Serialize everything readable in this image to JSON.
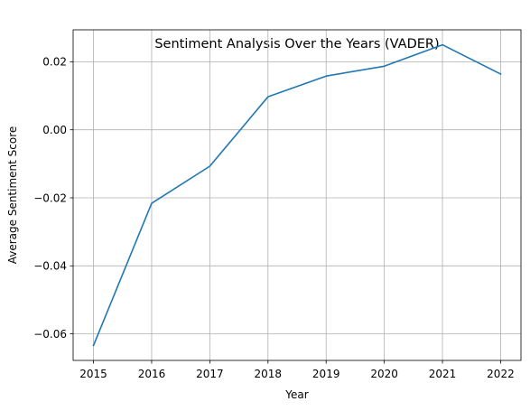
{
  "chart_data": {
    "type": "line",
    "title": "Sentiment Analysis Over the Years (VADER)",
    "xlabel": "Year",
    "ylabel": "Average Sentiment Score",
    "x": [
      "2015",
      "2016",
      "2017",
      "2018",
      "2019",
      "2020",
      "2021",
      "2022"
    ],
    "series": [
      {
        "values": [
          -0.0634,
          -0.0216,
          -0.0107,
          0.0097,
          0.0158,
          0.0187,
          0.025,
          0.0164
        ],
        "color": "#1f77b4"
      }
    ],
    "yticks": [
      "−0.06",
      "−0.04",
      "−0.02",
      "0.00",
      "0.02"
    ],
    "ytick_values": [
      -0.06,
      -0.04,
      -0.02,
      0.0,
      0.02
    ],
    "ylim": [
      -0.0678,
      0.0294
    ],
    "xlim": [
      2014.65,
      2022.35
    ],
    "grid": true,
    "legend": "none"
  }
}
